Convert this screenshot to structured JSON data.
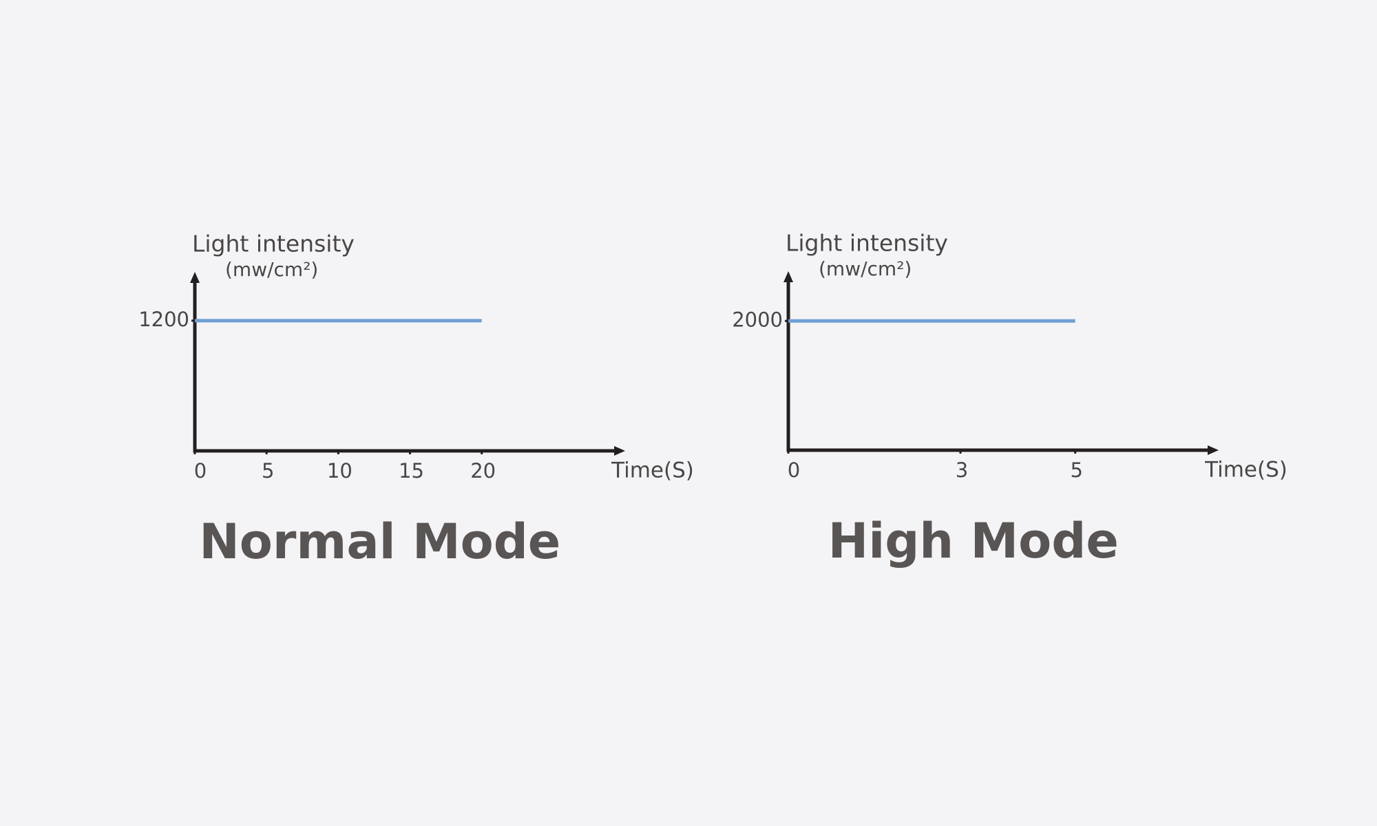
{
  "chart_data": [
    {
      "type": "line",
      "title": "Normal Mode",
      "y_label": "Light intensity",
      "y_unit": "(mw/cm²)",
      "x_label": "Time(S)",
      "x": [
        0,
        20
      ],
      "series": [
        {
          "color": "#6fa0d4",
          "values": [
            1200,
            1200
          ]
        }
      ],
      "xlim": [
        0,
        30
      ],
      "xticks": [
        0,
        5,
        10,
        15,
        20
      ],
      "ylim": [
        0,
        1650
      ],
      "yticks": [
        1200
      ]
    },
    {
      "type": "line",
      "title": "High Mode",
      "y_label": "Light intensity",
      "y_unit": "(mw/cm²)",
      "x_label": "Time(S)",
      "x": [
        0,
        5
      ],
      "series": [
        {
          "color": "#6fa0d4",
          "values": [
            2000,
            2000
          ]
        }
      ],
      "xlim": [
        0,
        7.5
      ],
      "xticks": [
        0,
        3,
        5
      ],
      "ylim": [
        0,
        2770
      ],
      "yticks": [
        2000
      ]
    }
  ]
}
